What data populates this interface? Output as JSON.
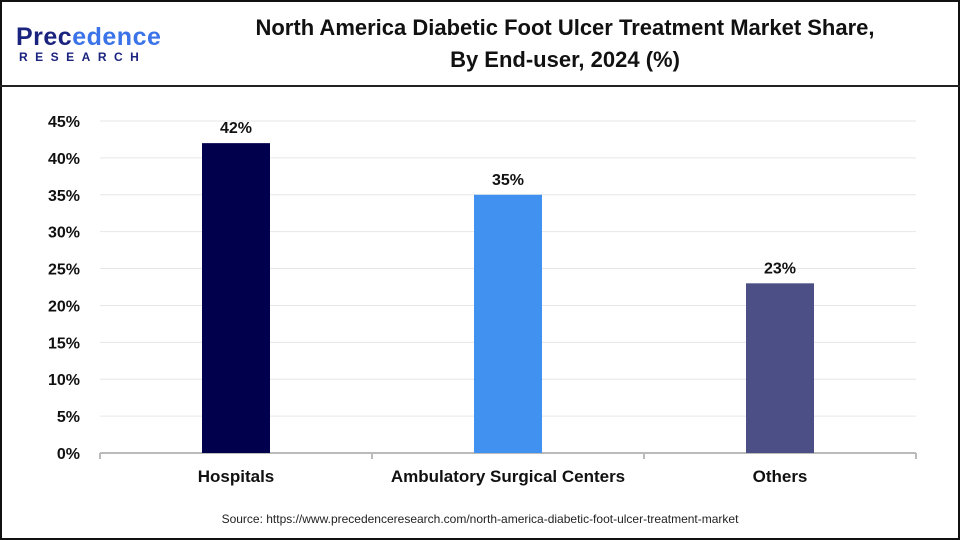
{
  "brand": {
    "line1_a": "Prec",
    "line1_b": "edence",
    "line2": "RESEARCH"
  },
  "title_line1": "North America Diabetic Foot Ulcer Treatment Market Share,",
  "title_line2": "By End-user, 2024 (%)",
  "source": "Source: https://www.precedenceresearch.com/north-america-diabetic-foot-ulcer-treatment-market",
  "chart_data": {
    "type": "bar",
    "categories": [
      "Hospitals",
      "Ambulatory Surgical Centers",
      "Others"
    ],
    "values": [
      42,
      35,
      23
    ],
    "data_labels": [
      "42%",
      "35%",
      "23%"
    ],
    "colors": [
      "#00004d",
      "#4192f0",
      "#4c4f86"
    ],
    "ylim": [
      0,
      45
    ],
    "yticks": [
      "0%",
      "5%",
      "10%",
      "15%",
      "20%",
      "25%",
      "30%",
      "35%",
      "40%",
      "45%"
    ],
    "grid": true,
    "xlabel": "",
    "ylabel": ""
  }
}
